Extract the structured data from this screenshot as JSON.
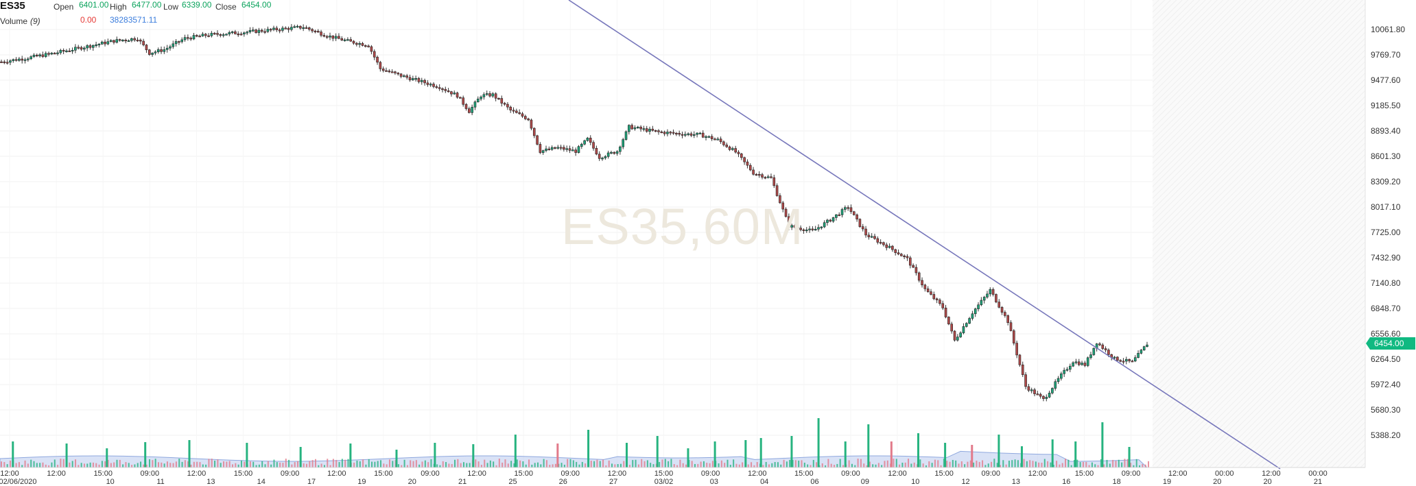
{
  "header": {
    "symbol": "ES35",
    "open_label": "Open",
    "open_value": "6401.00",
    "high_label": "High",
    "high_value": "6477.00",
    "low_label": "Low",
    "low_value": "6339.00",
    "close_label": "Close",
    "close_value": "6454.00",
    "volume_label": "Volume",
    "volume_period": "(9)",
    "volume_change": "0.00",
    "volume_value": "38283571.11"
  },
  "watermark": "ES35,60M",
  "last_price_label": "6454.00",
  "colors": {
    "up": "#1fa37a",
    "down": "#b04a4a",
    "trendline": "#7777bb",
    "volume_up": "#26b37f",
    "volume_down": "#e27a8a",
    "volume_ma_fill": "#b9cbee",
    "last_price": "#10b981"
  },
  "chart_data": {
    "type": "candlestick",
    "title": "ES35",
    "y_axis": {
      "ticks": [
        "5388.20",
        "5680.30",
        "5972.40",
        "6264.50",
        "6556.60",
        "6848.70",
        "7140.80",
        "7432.90",
        "7725.00",
        "8017.10",
        "8309.20",
        "8601.30",
        "8893.40",
        "9185.50",
        "9477.60",
        "9769.70",
        "10061.80"
      ],
      "range": [
        5096.1,
        10253.3
      ]
    },
    "x_axis": {
      "time_labels": [
        "12:00",
        "12:00",
        "15:00",
        "09:00",
        "12:00",
        "15:00",
        "09:00",
        "12:00",
        "15:00",
        "09:00",
        "12:00",
        "15:00",
        "09:00",
        "12:00",
        "15:00",
        "09:00",
        "12:00",
        "15:00",
        "09:00",
        "12:00",
        "15:00",
        "09:00",
        "12:00",
        "15:00",
        "09:00",
        "12:00",
        "00:00",
        "12:00",
        "00:00"
      ],
      "date_labels": [
        "02/06/2020",
        "10",
        "11",
        "13",
        "14",
        "17",
        "19",
        "20",
        "21",
        "25",
        "26",
        "27",
        "03/02",
        "03",
        "04",
        "06",
        "09",
        "10",
        "12",
        "13",
        "16",
        "18",
        "19",
        "20",
        "20",
        "21"
      ]
    },
    "trendline": {
      "start": [
        0,
        10258
      ],
      "end": [
        1,
        5080
      ]
    },
    "last_price": 6454.0,
    "price_path": [
      [
        0,
        9690
      ],
      [
        8,
        9730
      ],
      [
        18,
        9790
      ],
      [
        28,
        9860
      ],
      [
        38,
        9930
      ],
      [
        46,
        9960
      ],
      [
        50,
        9790
      ],
      [
        55,
        9830
      ],
      [
        62,
        9960
      ],
      [
        70,
        10000
      ],
      [
        82,
        10030
      ],
      [
        92,
        10060
      ],
      [
        102,
        10090
      ],
      [
        110,
        9990
      ],
      [
        118,
        9920
      ],
      [
        124,
        9880
      ],
      [
        128,
        9610
      ],
      [
        134,
        9540
      ],
      [
        140,
        9480
      ],
      [
        148,
        9400
      ],
      [
        154,
        9300
      ],
      [
        158,
        9120
      ],
      [
        162,
        9300
      ],
      [
        166,
        9310
      ],
      [
        172,
        9130
      ],
      [
        178,
        9030
      ],
      [
        182,
        8660
      ],
      [
        188,
        8700
      ],
      [
        194,
        8660
      ],
      [
        198,
        8800
      ],
      [
        202,
        8590
      ],
      [
        208,
        8660
      ],
      [
        212,
        8940
      ],
      [
        222,
        8880
      ],
      [
        230,
        8860
      ],
      [
        236,
        8850
      ],
      [
        242,
        8790
      ],
      [
        248,
        8650
      ],
      [
        254,
        8410
      ],
      [
        260,
        8350
      ],
      [
        266,
        7800
      ],
      [
        274,
        7740
      ],
      [
        280,
        7870
      ],
      [
        286,
        8020
      ],
      [
        292,
        7700
      ],
      [
        300,
        7550
      ],
      [
        306,
        7420
      ],
      [
        312,
        7070
      ],
      [
        318,
        6860
      ],
      [
        322,
        6480
      ],
      [
        328,
        6800
      ],
      [
        334,
        7060
      ],
      [
        340,
        6700
      ],
      [
        346,
        5950
      ],
      [
        352,
        5800
      ],
      [
        358,
        6080
      ],
      [
        362,
        6240
      ],
      [
        366,
        6200
      ],
      [
        370,
        6460
      ],
      [
        376,
        6270
      ],
      [
        382,
        6230
      ],
      [
        387,
        6440
      ]
    ],
    "volume": {
      "ma_level": 0.13,
      "spikes": [
        [
          6,
          0.38,
          "up"
        ],
        [
          34,
          0.35,
          "up"
        ],
        [
          55,
          0.28,
          "up"
        ],
        [
          75,
          0.37,
          "up"
        ],
        [
          98,
          0.4,
          "up"
        ],
        [
          128,
          0.36,
          "up"
        ],
        [
          156,
          0.3,
          "up"
        ],
        [
          182,
          0.35,
          "up"
        ],
        [
          206,
          0.26,
          "up"
        ],
        [
          226,
          0.36,
          "up"
        ],
        [
          246,
          0.34,
          "up"
        ],
        [
          268,
          0.48,
          "up"
        ],
        [
          290,
          0.35,
          "down"
        ],
        [
          306,
          0.55,
          "up"
        ],
        [
          326,
          0.36,
          "up"
        ],
        [
          342,
          0.46,
          "up"
        ],
        [
          358,
          0.28,
          "up"
        ],
        [
          372,
          0.38,
          "up"
        ],
        [
          388,
          0.4,
          "up"
        ],
        [
          396,
          0.43,
          "up"
        ],
        [
          412,
          0.46,
          "up"
        ],
        [
          426,
          0.72,
          "up"
        ],
        [
          440,
          0.38,
          "up"
        ],
        [
          452,
          0.63,
          "up"
        ],
        [
          464,
          0.38,
          "down"
        ],
        [
          478,
          0.5,
          "up"
        ],
        [
          492,
          0.36,
          "up"
        ],
        [
          506,
          0.33,
          "down"
        ],
        [
          520,
          0.48,
          "up"
        ],
        [
          532,
          0.31,
          "up"
        ],
        [
          548,
          0.41,
          "up"
        ],
        [
          560,
          0.38,
          "up"
        ],
        [
          574,
          0.66,
          "up"
        ],
        [
          588,
          0.3,
          "up"
        ]
      ]
    }
  }
}
